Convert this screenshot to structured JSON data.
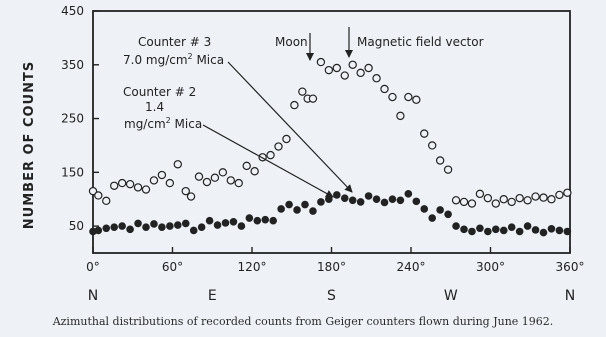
{
  "chart_data": {
    "type": "scatter",
    "title": "",
    "xlabel": "",
    "ylabel": "NUMBER OF COUNTS",
    "xlim": [
      0,
      360
    ],
    "ylim": [
      0,
      450
    ],
    "x_ticks": [
      0,
      60,
      120,
      180,
      240,
      300,
      360
    ],
    "x_tick_labels": [
      "0°",
      "60°",
      "120°",
      "180°",
      "240°",
      "300°",
      "360°"
    ],
    "y_ticks": [
      50,
      150,
      250,
      350,
      450
    ],
    "y_tick_labels": [
      "50",
      "150",
      "250",
      "350",
      "450"
    ],
    "compass": [
      {
        "label": "N",
        "x": 0
      },
      {
        "label": "E",
        "x": 90
      },
      {
        "label": "S",
        "x": 180
      },
      {
        "label": "W",
        "x": 270
      },
      {
        "label": "N",
        "x": 360
      }
    ],
    "grid": false,
    "series": [
      {
        "name": "Counter # 3 7.0 mg/cm2 Mica",
        "marker": "open-circle",
        "points": [
          [
            0,
            115
          ],
          [
            4,
            107
          ],
          [
            10,
            97
          ],
          [
            16,
            125
          ],
          [
            22,
            130
          ],
          [
            28,
            128
          ],
          [
            34,
            122
          ],
          [
            40,
            118
          ],
          [
            46,
            135
          ],
          [
            52,
            145
          ],
          [
            58,
            130
          ],
          [
            64,
            165
          ],
          [
            70,
            115
          ],
          [
            74,
            105
          ],
          [
            80,
            142
          ],
          [
            86,
            132
          ],
          [
            92,
            140
          ],
          [
            98,
            150
          ],
          [
            104,
            135
          ],
          [
            110,
            130
          ],
          [
            116,
            162
          ],
          [
            122,
            152
          ],
          [
            128,
            178
          ],
          [
            134,
            182
          ],
          [
            140,
            198
          ],
          [
            146,
            212
          ],
          [
            152,
            275
          ],
          [
            158,
            300
          ],
          [
            162,
            287
          ],
          [
            166,
            287
          ],
          [
            172,
            355
          ],
          [
            178,
            340
          ],
          [
            184,
            344
          ],
          [
            190,
            330
          ],
          [
            196,
            350
          ],
          [
            202,
            335
          ],
          [
            208,
            344
          ],
          [
            214,
            325
          ],
          [
            220,
            305
          ],
          [
            226,
            290
          ],
          [
            232,
            255
          ],
          [
            238,
            290
          ],
          [
            244,
            285
          ],
          [
            250,
            222
          ],
          [
            256,
            200
          ],
          [
            262,
            172
          ],
          [
            268,
            155
          ],
          [
            274,
            98
          ],
          [
            280,
            95
          ],
          [
            286,
            92
          ],
          [
            292,
            110
          ],
          [
            298,
            102
          ],
          [
            304,
            92
          ],
          [
            310,
            100
          ],
          [
            316,
            95
          ],
          [
            322,
            102
          ],
          [
            328,
            98
          ],
          [
            334,
            105
          ],
          [
            340,
            103
          ],
          [
            346,
            100
          ],
          [
            352,
            108
          ],
          [
            358,
            112
          ]
        ]
      },
      {
        "name": "Counter # 2 1.4 mg/cm2 Mica",
        "marker": "filled-circle",
        "points": [
          [
            0,
            40
          ],
          [
            4,
            42
          ],
          [
            10,
            46
          ],
          [
            16,
            48
          ],
          [
            22,
            50
          ],
          [
            28,
            44
          ],
          [
            34,
            55
          ],
          [
            40,
            48
          ],
          [
            46,
            54
          ],
          [
            52,
            48
          ],
          [
            58,
            50
          ],
          [
            64,
            52
          ],
          [
            70,
            55
          ],
          [
            76,
            42
          ],
          [
            82,
            48
          ],
          [
            88,
            60
          ],
          [
            94,
            52
          ],
          [
            100,
            56
          ],
          [
            106,
            58
          ],
          [
            112,
            50
          ],
          [
            118,
            65
          ],
          [
            124,
            60
          ],
          [
            130,
            62
          ],
          [
            136,
            60
          ],
          [
            142,
            82
          ],
          [
            148,
            90
          ],
          [
            154,
            80
          ],
          [
            160,
            90
          ],
          [
            166,
            78
          ],
          [
            172,
            95
          ],
          [
            178,
            100
          ],
          [
            184,
            108
          ],
          [
            190,
            102
          ],
          [
            196,
            98
          ],
          [
            202,
            95
          ],
          [
            208,
            106
          ],
          [
            214,
            100
          ],
          [
            220,
            94
          ],
          [
            226,
            100
          ],
          [
            232,
            98
          ],
          [
            238,
            110
          ],
          [
            244,
            96
          ],
          [
            250,
            82
          ],
          [
            256,
            65
          ],
          [
            262,
            80
          ],
          [
            268,
            72
          ],
          [
            274,
            50
          ],
          [
            280,
            44
          ],
          [
            286,
            40
          ],
          [
            292,
            46
          ],
          [
            298,
            40
          ],
          [
            304,
            44
          ],
          [
            310,
            42
          ],
          [
            316,
            48
          ],
          [
            322,
            40
          ],
          [
            328,
            50
          ],
          [
            334,
            43
          ],
          [
            340,
            38
          ],
          [
            346,
            45
          ],
          [
            352,
            42
          ],
          [
            358,
            40
          ]
        ]
      }
    ],
    "annotations": {
      "counter3": {
        "line1": "Counter # 3",
        "line2_prefix": "7.0 mg/cm",
        "line2_sup": "2",
        "line2_suffix": " Mica"
      },
      "counter2": {
        "line1": "Counter # 2",
        "line2": "1.4",
        "line3_prefix": "mg/cm",
        "line3_sup": "2",
        "line3_suffix": " Mica"
      },
      "moon": "Moon",
      "magnetic": "Magnetic field vector"
    }
  },
  "caption": "Azimuthal distributions of recorded counts from Geiger counters flown during June 1962."
}
